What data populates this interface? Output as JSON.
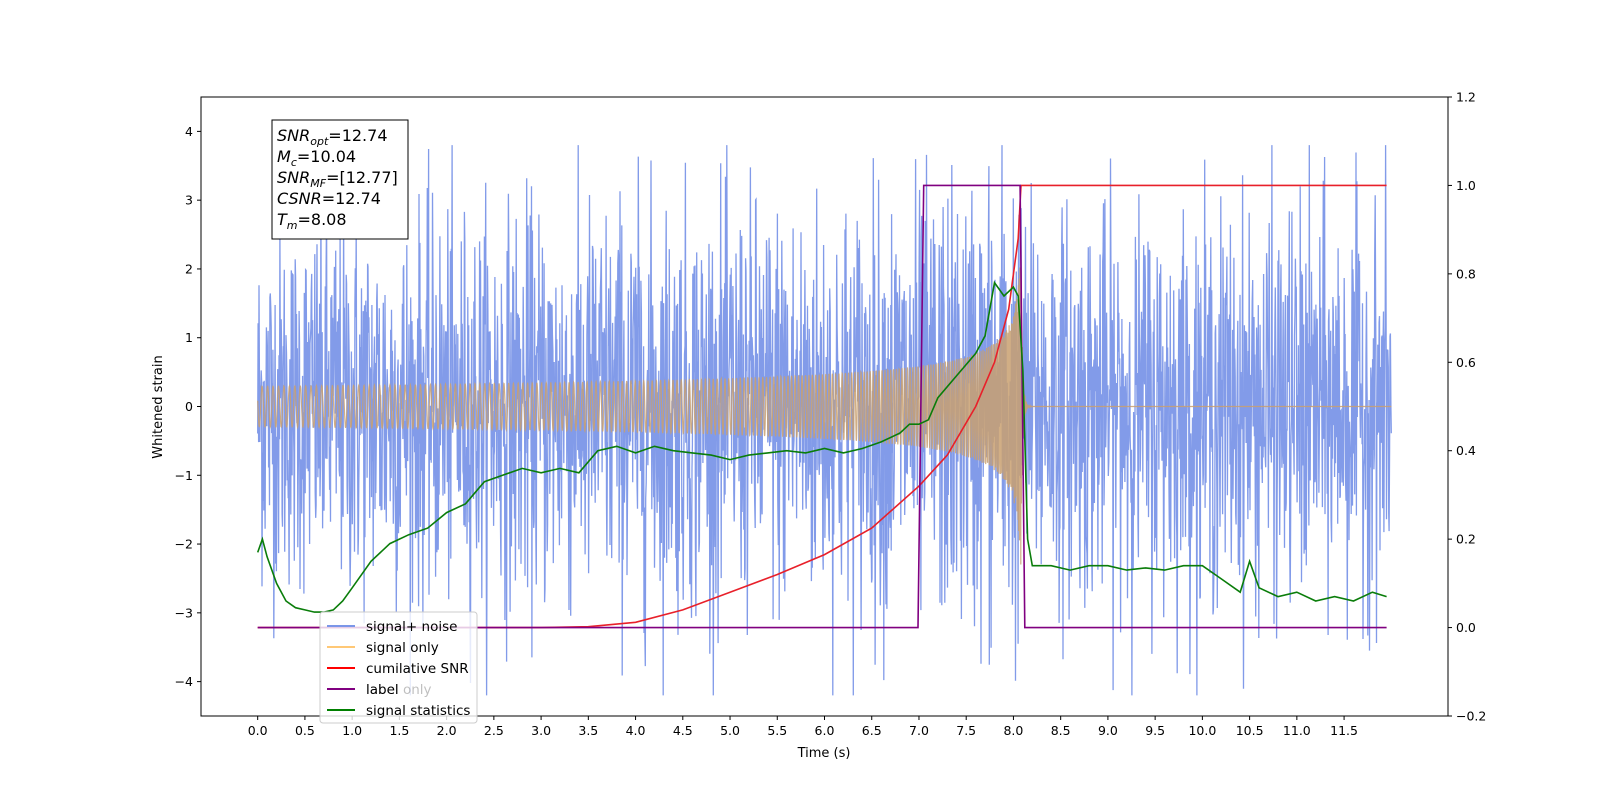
{
  "chart_data": {
    "type": "line",
    "xlabel": "Time (s)",
    "ylabel": "Whitened strain",
    "xlim": [
      -0.6,
      12.6
    ],
    "ylim_left": [
      -4.5,
      4.5
    ],
    "ylim_right": [
      -0.2,
      1.2
    ],
    "x_ticks": [
      "0.0",
      "0.5",
      "1.0",
      "1.5",
      "2.0",
      "2.5",
      "3.0",
      "3.5",
      "4.0",
      "4.5",
      "5.0",
      "5.5",
      "6.0",
      "6.5",
      "7.0",
      "7.5",
      "8.0",
      "8.5",
      "9.0",
      "9.5",
      "10.0",
      "10.5",
      "11.0",
      "11.5"
    ],
    "y_ticks_left": [
      "4",
      "3",
      "2",
      "1",
      "0",
      "−1",
      "−2",
      "−3",
      "−4"
    ],
    "y_ticks_right": [
      "1.2",
      "1.0",
      "0.8",
      "0.6",
      "0.4",
      "0.2",
      "0.0",
      "−0.2"
    ],
    "annotation": {
      "lines": [
        {
          "sym": "SNR",
          "sub": "opt",
          "value": "=12.74"
        },
        {
          "sym": "M",
          "sub": "c",
          "value": "=10.04"
        },
        {
          "sym": "SNR",
          "sub": "MF",
          "value": "=[12.77]"
        },
        {
          "sym": "CSNR",
          "sub": "",
          "value": "=12.74"
        },
        {
          "sym": "T",
          "sub": "m",
          "value": "=8.08"
        }
      ]
    },
    "legend": {
      "placement": "lower-left",
      "entries": [
        {
          "label": "signal+ noise",
          "color": "#7b96e8"
        },
        {
          "label": "signal only",
          "color": "#ffc876"
        },
        {
          "label": "cumilative SNR",
          "color": "#ff0000"
        },
        {
          "label": "label",
          "color": "#800080"
        },
        {
          "label": "signal statistics",
          "color": "#008000"
        }
      ],
      "hidden_label": "label only"
    },
    "series": [
      {
        "name": "signal+ noise",
        "axis": "left",
        "color": "#7b96e8",
        "x_range": [
          0.0,
          12.0
        ],
        "envelope": {
          "x": [
            0,
            1,
            2,
            3,
            4,
            5,
            6,
            7,
            7.5,
            8.0,
            8.1,
            9,
            10,
            11,
            12
          ],
          "amp": [
            2.3,
            2.5,
            2.5,
            2.6,
            2.7,
            2.7,
            2.7,
            2.8,
            2.9,
            3.4,
            2.6,
            2.5,
            2.5,
            2.6,
            2.4
          ]
        }
      },
      {
        "name": "signal only",
        "axis": "left",
        "color": "#c9a070",
        "chirp": {
          "t_merge": 8.08,
          "peak_amp": 2.0,
          "start": 0.0,
          "end": 12.0
        }
      },
      {
        "name": "cumilative SNR",
        "axis": "right",
        "color": "#e8202a",
        "x": [
          0,
          2,
          3,
          3.5,
          4.0,
          4.5,
          5.0,
          5.5,
          6.0,
          6.5,
          7.0,
          7.3,
          7.6,
          7.8,
          7.95,
          8.05,
          8.08,
          8.1,
          11.95
        ],
        "y": [
          0.0,
          0.0,
          0.0,
          0.002,
          0.012,
          0.04,
          0.08,
          0.12,
          0.165,
          0.225,
          0.32,
          0.39,
          0.5,
          0.6,
          0.72,
          0.88,
          1.0,
          1.0,
          1.0
        ]
      },
      {
        "name": "label",
        "axis": "right",
        "color": "#800080",
        "x": [
          0.0,
          6.99,
          7.05,
          8.07,
          8.12,
          11.95
        ],
        "y": [
          0.0,
          0.0,
          1.0,
          1.0,
          0.0,
          0.0
        ]
      },
      {
        "name": "signal statistics",
        "axis": "right",
        "color": "#0a7d0a",
        "x": [
          0.0,
          0.05,
          0.1,
          0.2,
          0.3,
          0.4,
          0.5,
          0.6,
          0.7,
          0.8,
          0.9,
          1.0,
          1.2,
          1.4,
          1.6,
          1.8,
          2.0,
          2.2,
          2.4,
          2.6,
          2.8,
          3.0,
          3.2,
          3.4,
          3.6,
          3.8,
          4.0,
          4.2,
          4.4,
          4.6,
          4.8,
          5.0,
          5.2,
          5.4,
          5.6,
          5.8,
          6.0,
          6.2,
          6.4,
          6.6,
          6.8,
          6.9,
          7.0,
          7.1,
          7.2,
          7.4,
          7.6,
          7.7,
          7.8,
          7.9,
          8.0,
          8.05,
          8.1,
          8.15,
          8.2,
          8.4,
          8.6,
          8.8,
          9.0,
          9.2,
          9.4,
          9.6,
          9.8,
          10.0,
          10.2,
          10.4,
          10.5,
          10.6,
          10.8,
          11.0,
          11.2,
          11.4,
          11.6,
          11.8,
          11.95
        ],
        "y": [
          0.17,
          0.2,
          0.16,
          0.1,
          0.06,
          0.045,
          0.04,
          0.035,
          0.035,
          0.04,
          0.06,
          0.09,
          0.15,
          0.19,
          0.21,
          0.225,
          0.26,
          0.28,
          0.33,
          0.345,
          0.36,
          0.35,
          0.36,
          0.35,
          0.4,
          0.41,
          0.395,
          0.41,
          0.4,
          0.395,
          0.39,
          0.38,
          0.39,
          0.395,
          0.4,
          0.395,
          0.405,
          0.395,
          0.405,
          0.42,
          0.44,
          0.46,
          0.46,
          0.47,
          0.52,
          0.57,
          0.62,
          0.66,
          0.78,
          0.75,
          0.77,
          0.75,
          0.58,
          0.2,
          0.14,
          0.14,
          0.13,
          0.14,
          0.14,
          0.13,
          0.135,
          0.13,
          0.14,
          0.14,
          0.11,
          0.08,
          0.15,
          0.09,
          0.07,
          0.08,
          0.06,
          0.07,
          0.06,
          0.08,
          0.07
        ]
      }
    ]
  }
}
